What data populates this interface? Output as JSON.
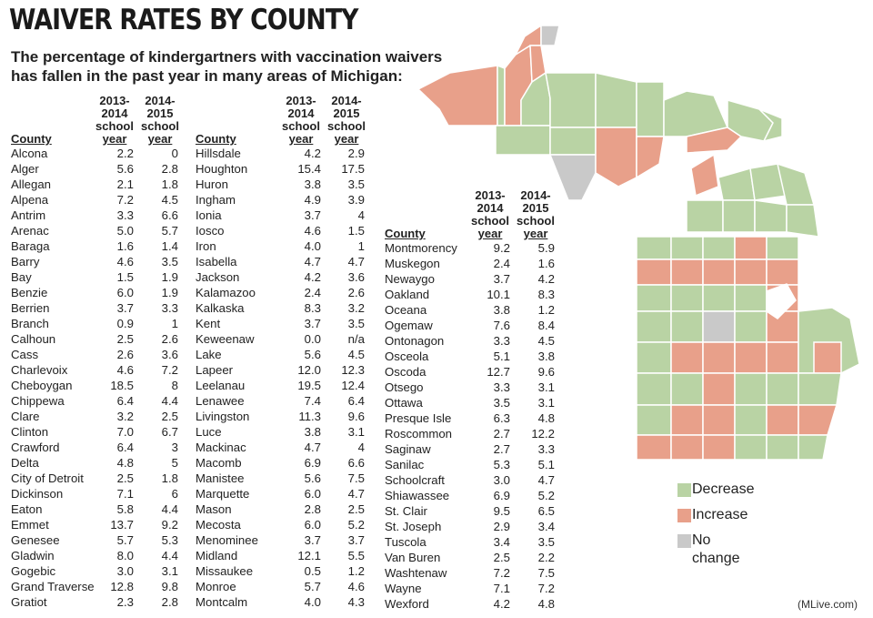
{
  "title": "WAIVER RATES BY COUNTY",
  "subtitle": "The percentage of kindergartners with vaccination waivers has fallen in the past year in many areas of Michigan:",
  "columns": {
    "county": "County",
    "year1": [
      "2013-",
      "2014",
      "school",
      "year"
    ],
    "year2": [
      "2014-",
      "2015",
      "school",
      "year"
    ]
  },
  "table1": [
    [
      "Alcona",
      "2.2",
      "0"
    ],
    [
      "Alger",
      "5.6",
      "2.8"
    ],
    [
      "Allegan",
      "2.1",
      "1.8"
    ],
    [
      "Alpena",
      "7.2",
      "4.5"
    ],
    [
      "Antrim",
      "3.3",
      "6.6"
    ],
    [
      "Arenac",
      "5.0",
      "5.7"
    ],
    [
      "Baraga",
      "1.6",
      "1.4"
    ],
    [
      "Barry",
      "4.6",
      "3.5"
    ],
    [
      "Bay",
      "1.5",
      "1.9"
    ],
    [
      "Benzie",
      "6.0",
      "1.9"
    ],
    [
      "Berrien",
      "3.7",
      "3.3"
    ],
    [
      "Branch",
      "0.9",
      "1"
    ],
    [
      "Calhoun",
      "2.5",
      "2.6"
    ],
    [
      "Cass",
      "2.6",
      "3.6"
    ],
    [
      "Charlevoix",
      "4.6",
      "7.2"
    ],
    [
      "Cheboygan",
      "18.5",
      "8"
    ],
    [
      "Chippewa",
      "6.4",
      "4.4"
    ],
    [
      "Clare",
      "3.2",
      "2.5"
    ],
    [
      "Clinton",
      "7.0",
      "6.7"
    ],
    [
      "Crawford",
      "6.4",
      "3"
    ],
    [
      "Delta",
      "4.8",
      "5"
    ],
    [
      "City of Detroit",
      "2.5",
      "1.8"
    ],
    [
      "Dickinson",
      "7.1",
      "6"
    ],
    [
      "Eaton",
      "5.8",
      "4.4"
    ],
    [
      "Emmet",
      "13.7",
      "9.2"
    ],
    [
      "Genesee",
      "5.7",
      "5.3"
    ],
    [
      "Gladwin",
      "8.0",
      "4.4"
    ],
    [
      "Gogebic",
      "3.0",
      "3.1"
    ],
    [
      "Grand Traverse",
      "12.8",
      "9.8"
    ],
    [
      "Gratiot",
      "2.3",
      "2.8"
    ]
  ],
  "table2": [
    [
      "Hillsdale",
      "4.2",
      "2.9"
    ],
    [
      "Houghton",
      "15.4",
      "17.5"
    ],
    [
      "Huron",
      "3.8",
      "3.5"
    ],
    [
      "Ingham",
      "4.9",
      "3.9"
    ],
    [
      "Ionia",
      "3.7",
      "4"
    ],
    [
      "Iosco",
      "4.6",
      "1.5"
    ],
    [
      "Iron",
      "4.0",
      "1"
    ],
    [
      "Isabella",
      "4.7",
      "4.7"
    ],
    [
      "Jackson",
      "4.2",
      "3.6"
    ],
    [
      "Kalamazoo",
      "2.4",
      "2.6"
    ],
    [
      "Kalkaska",
      "8.3",
      "3.2"
    ],
    [
      "Kent",
      "3.7",
      "3.5"
    ],
    [
      "Keweenaw",
      "0.0",
      "n/a"
    ],
    [
      "Lake",
      "5.6",
      "4.5"
    ],
    [
      "Lapeer",
      "12.0",
      "12.3"
    ],
    [
      "Leelanau",
      "19.5",
      "12.4"
    ],
    [
      "Lenawee",
      "7.4",
      "6.4"
    ],
    [
      "Livingston",
      "11.3",
      "9.6"
    ],
    [
      "Luce",
      "3.8",
      "3.1"
    ],
    [
      "Mackinac",
      "4.7",
      "4"
    ],
    [
      "Macomb",
      "6.9",
      "6.6"
    ],
    [
      "Manistee",
      "5.6",
      "7.5"
    ],
    [
      "Marquette",
      "6.0",
      "4.7"
    ],
    [
      "Mason",
      "2.8",
      "2.5"
    ],
    [
      "Mecosta",
      "6.0",
      "5.2"
    ],
    [
      "Menominee",
      "3.7",
      "3.7"
    ],
    [
      "Midland",
      "12.1",
      "5.5"
    ],
    [
      "Missaukee",
      "0.5",
      "1.2"
    ],
    [
      "Monroe",
      "5.7",
      "4.6"
    ],
    [
      "Montcalm",
      "4.0",
      "4.3"
    ]
  ],
  "table3": [
    [
      "Montmorency",
      "9.2",
      "5.9"
    ],
    [
      "Muskegon",
      "2.4",
      "1.6"
    ],
    [
      "Newaygo",
      "3.7",
      "4.2"
    ],
    [
      "Oakland",
      "10.1",
      "8.3"
    ],
    [
      "Oceana",
      "3.8",
      "1.2"
    ],
    [
      "Ogemaw",
      "7.6",
      "8.4"
    ],
    [
      "Ontonagon",
      "3.3",
      "4.5"
    ],
    [
      "Osceola",
      "5.1",
      "3.8"
    ],
    [
      "Oscoda",
      "12.7",
      "9.6"
    ],
    [
      "Otsego",
      "3.3",
      "3.1"
    ],
    [
      "Ottawa",
      "3.5",
      "3.1"
    ],
    [
      "Presque Isle",
      "6.3",
      "4.8"
    ],
    [
      "Roscommon",
      "2.7",
      "12.2"
    ],
    [
      "Saginaw",
      "2.7",
      "3.3"
    ],
    [
      "Sanilac",
      "5.3",
      "5.1"
    ],
    [
      "Schoolcraft",
      "3.0",
      "4.7"
    ],
    [
      "Shiawassee",
      "6.9",
      "5.2"
    ],
    [
      "St. Clair",
      "9.5",
      "6.5"
    ],
    [
      "St. Joseph",
      "2.9",
      "3.4"
    ],
    [
      "Tuscola",
      "3.4",
      "3.5"
    ],
    [
      "Van Buren",
      "2.5",
      "2.2"
    ],
    [
      "Washtenaw",
      "7.2",
      "7.5"
    ],
    [
      "Wayne",
      "7.1",
      "7.2"
    ],
    [
      "Wexford",
      "4.2",
      "4.8"
    ]
  ],
  "legend": [
    {
      "label": "Decrease",
      "color": "#b9d3a4"
    },
    {
      "label": "Increase",
      "color": "#e8a08a"
    },
    {
      "label": "No change",
      "color": "#c9c9c9"
    }
  ],
  "colors": {
    "decrease": "#b9d3a4",
    "increase": "#e8a08a",
    "nochange": "#c9c9c9",
    "border": "#ffffff"
  },
  "credit": "(MLive.com)"
}
